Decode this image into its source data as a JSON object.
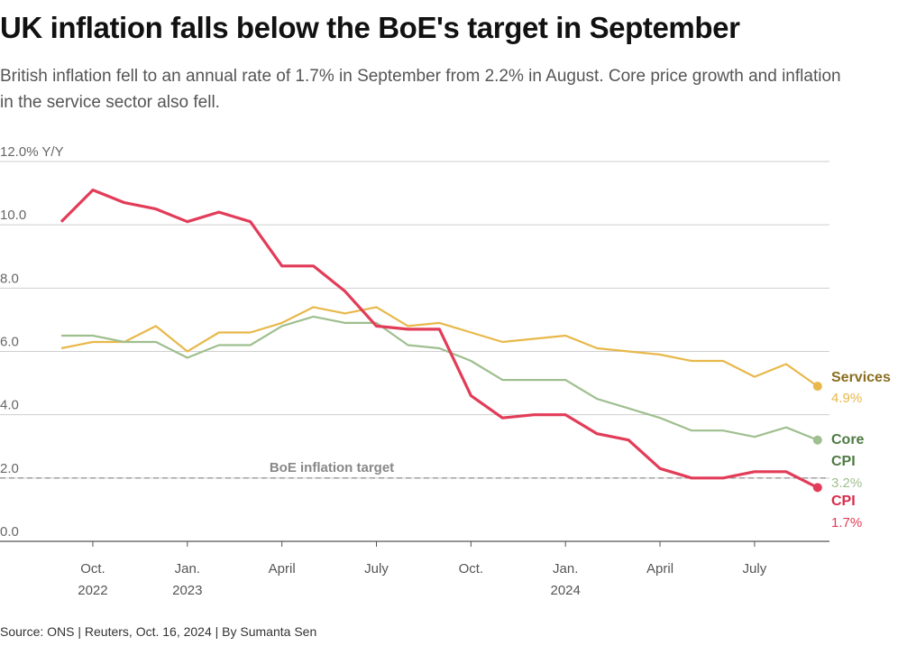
{
  "title": "UK inflation falls below the BoE's target in September",
  "subtitle": "British inflation fell to an annual rate of 1.7% in September from 2.2% in August. Core price growth and inflation in the service sector also fell.",
  "source": "Source: ONS | Reuters, Oct. 16, 2024 | By Sumanta Sen",
  "chart_data": {
    "type": "line",
    "ylabel": "Y/Y",
    "ylim": [
      0,
      12
    ],
    "yticks": [
      "0.0",
      "2.0",
      "4.0",
      "6.0",
      "8.0",
      "10.0",
      "12.0% Y/Y"
    ],
    "ytick_values": [
      0,
      2,
      4,
      6,
      8,
      10,
      12
    ],
    "grid": true,
    "x": [
      "2022-09",
      "2022-10",
      "2022-11",
      "2022-12",
      "2023-01",
      "2023-02",
      "2023-03",
      "2023-04",
      "2023-05",
      "2023-06",
      "2023-07",
      "2023-08",
      "2023-09",
      "2023-10",
      "2023-11",
      "2023-12",
      "2024-01",
      "2024-02",
      "2024-03",
      "2024-04",
      "2024-05",
      "2024-06",
      "2024-07",
      "2024-08",
      "2024-09"
    ],
    "xticks": [
      {
        "month": "2022-10",
        "line1": "Oct.",
        "line2": "2022"
      },
      {
        "month": "2023-01",
        "line1": "Jan.",
        "line2": "2023"
      },
      {
        "month": "2023-04",
        "line1": "April",
        "line2": ""
      },
      {
        "month": "2023-07",
        "line1": "July",
        "line2": ""
      },
      {
        "month": "2023-10",
        "line1": "Oct.",
        "line2": ""
      },
      {
        "month": "2024-01",
        "line1": "Jan.",
        "line2": "2024"
      },
      {
        "month": "2024-04",
        "line1": "April",
        "line2": ""
      },
      {
        "month": "2024-07",
        "line1": "July",
        "line2": ""
      }
    ],
    "series": [
      {
        "name": "Services",
        "end_label": "4.9%",
        "color": "#e8b84a",
        "label_color": "#8a6d1f",
        "values": [
          6.1,
          6.3,
          6.3,
          6.8,
          6.0,
          6.6,
          6.6,
          6.9,
          7.4,
          7.2,
          7.4,
          6.8,
          6.9,
          6.6,
          6.3,
          6.4,
          6.5,
          6.1,
          6.0,
          5.9,
          5.7,
          5.7,
          5.2,
          5.6,
          4.9
        ]
      },
      {
        "name": "Core",
        "end_label": "3.2%",
        "color": "#9fbf8f",
        "label_color": "#4e7a43",
        "values": [
          6.5,
          6.5,
          6.3,
          6.3,
          5.8,
          6.2,
          6.2,
          6.8,
          7.1,
          6.9,
          6.9,
          6.2,
          6.1,
          5.7,
          5.1,
          5.1,
          5.1,
          4.5,
          4.2,
          3.9,
          3.5,
          3.5,
          3.3,
          3.6,
          3.2
        ]
      },
      {
        "name": "CPI",
        "end_label": "1.7%",
        "color": "#e23c58",
        "label_color": "#d92a4a",
        "values": [
          10.1,
          11.1,
          10.7,
          10.5,
          10.1,
          10.4,
          10.1,
          8.7,
          8.7,
          7.9,
          6.8,
          6.7,
          6.7,
          4.6,
          3.9,
          4.0,
          4.0,
          3.4,
          3.2,
          2.3,
          2.0,
          2.0,
          2.2,
          2.2,
          1.7
        ]
      }
    ],
    "annotation": {
      "label": "BoE inflation target",
      "value": 2.0
    }
  }
}
